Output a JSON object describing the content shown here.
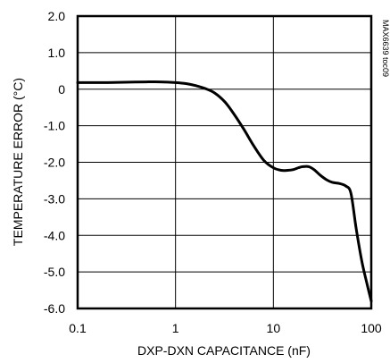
{
  "chart_data": {
    "type": "line",
    "title": "",
    "xlabel": "DXP-DXN CAPACITANCE (nF)",
    "ylabel": "TEMPERATURE ERROR (°C)",
    "x_scale": "log",
    "xlim": [
      0.1,
      100
    ],
    "ylim": [
      -6.0,
      2.0
    ],
    "grid": true,
    "x_ticks": [
      0.1,
      1,
      10,
      100
    ],
    "x_tick_labels": [
      "0.1",
      "1",
      "10",
      "100"
    ],
    "y_ticks": [
      2.0,
      1.0,
      0,
      -1.0,
      -2.0,
      -3.0,
      -4.0,
      -5.0,
      -6.0
    ],
    "y_tick_labels": [
      "2.0",
      "1.0",
      "0",
      "-1.0",
      "-2.0",
      "-3.0",
      "-4.0",
      "-5.0",
      "-6.0"
    ],
    "annotation": "MAX6639 toc09",
    "line_color": "#000000",
    "series": [
      {
        "x": [
          0.1,
          0.15,
          0.2,
          0.3,
          0.5,
          0.7,
          1.0,
          1.3,
          1.6,
          2.0,
          2.5,
          3.2,
          4.0,
          5.0,
          6.3,
          8.0,
          10,
          12,
          14,
          16,
          18,
          20,
          23,
          26,
          30,
          35,
          40,
          47,
          55,
          62,
          70,
          80,
          90,
          100
        ],
        "y": [
          0.18,
          0.18,
          0.18,
          0.19,
          0.2,
          0.2,
          0.18,
          0.15,
          0.1,
          0.02,
          -0.1,
          -0.35,
          -0.7,
          -1.1,
          -1.55,
          -1.95,
          -2.15,
          -2.22,
          -2.22,
          -2.2,
          -2.15,
          -2.12,
          -2.12,
          -2.2,
          -2.35,
          -2.48,
          -2.55,
          -2.58,
          -2.65,
          -2.85,
          -3.8,
          -4.7,
          -5.3,
          -5.8
        ]
      }
    ]
  }
}
